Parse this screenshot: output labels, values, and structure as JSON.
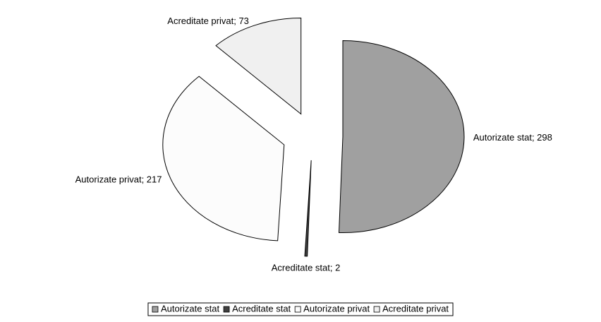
{
  "chart_data": {
    "type": "pie",
    "categories": [
      "Autorizate stat",
      "Acreditate stat",
      "Autorizate privat",
      "Acreditate privat"
    ],
    "values": [
      298,
      2,
      217,
      73
    ],
    "value_labels": [
      "Autorizate stat; 298",
      "Acreditate stat; 2",
      "Autorizate privat; 217",
      "Acreditate privat; 73"
    ],
    "colors": [
      "#a0a0a0",
      "#404040",
      "#fcfcfc",
      "#f0f0f0"
    ],
    "legend": "bottom"
  }
}
